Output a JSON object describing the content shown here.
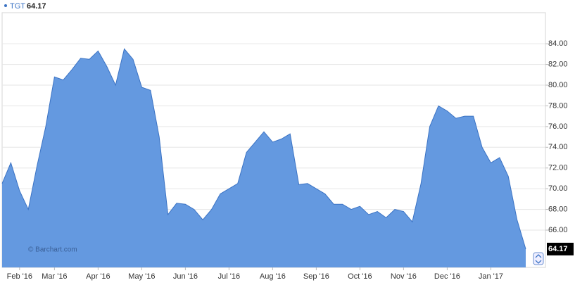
{
  "chart_data": {
    "type": "area",
    "annotation": "© Barchart.com",
    "categories": [
      null,
      null,
      "Feb '16",
      null,
      null,
      null,
      "Mar '16",
      null,
      null,
      null,
      null,
      "Apr '16",
      null,
      null,
      null,
      null,
      "May '16",
      null,
      null,
      null,
      null,
      "Jun '16",
      null,
      null,
      null,
      null,
      "Jul '16",
      null,
      null,
      null,
      null,
      "Aug '16",
      null,
      null,
      null,
      null,
      "Sep '16",
      null,
      null,
      null,
      null,
      "Oct '16",
      null,
      null,
      null,
      null,
      "Nov '16",
      null,
      null,
      null,
      null,
      "Dec '16",
      null,
      null,
      null,
      null,
      "Jan '17",
      null,
      null,
      null,
      null
    ],
    "series": [
      {
        "name": "TGT",
        "color": "#6499e0",
        "line_color": "#3b73c4",
        "values": [
          70.5,
          72.5,
          69.8,
          68,
          72.2,
          76,
          80.8,
          80.5,
          81.5,
          82.6,
          82.5,
          83.3,
          81.8,
          80,
          83.5,
          82.5,
          79.8,
          79.5,
          75,
          67.5,
          68.6,
          68.5,
          68,
          67,
          68,
          69.5,
          70,
          70.5,
          73.5,
          74.5,
          75.5,
          74.5,
          74.8,
          75.3,
          70.4,
          70.5,
          70,
          69.5,
          68.5,
          68.5,
          68,
          68.3,
          67.5,
          67.8,
          67.2,
          68,
          67.8,
          66.8,
          70.5,
          76,
          78,
          77.5,
          76.8,
          77,
          77,
          74,
          72.5,
          73,
          71.2,
          67,
          64.17
        ]
      }
    ],
    "ylim": [
      62.4,
      87
    ],
    "yticks": [
      {
        "value": 66,
        "label": "66.00"
      },
      {
        "value": 68,
        "label": "68.00"
      },
      {
        "value": 70,
        "label": "70.00"
      },
      {
        "value": 72,
        "label": "72.00"
      },
      {
        "value": 74,
        "label": "74.00"
      },
      {
        "value": 76,
        "label": "76.00"
      },
      {
        "value": 78,
        "label": "78.00"
      },
      {
        "value": 80,
        "label": "80.00"
      },
      {
        "value": 82,
        "label": "82.00"
      },
      {
        "value": 84,
        "label": "84.00"
      }
    ],
    "grid": true
  }
}
